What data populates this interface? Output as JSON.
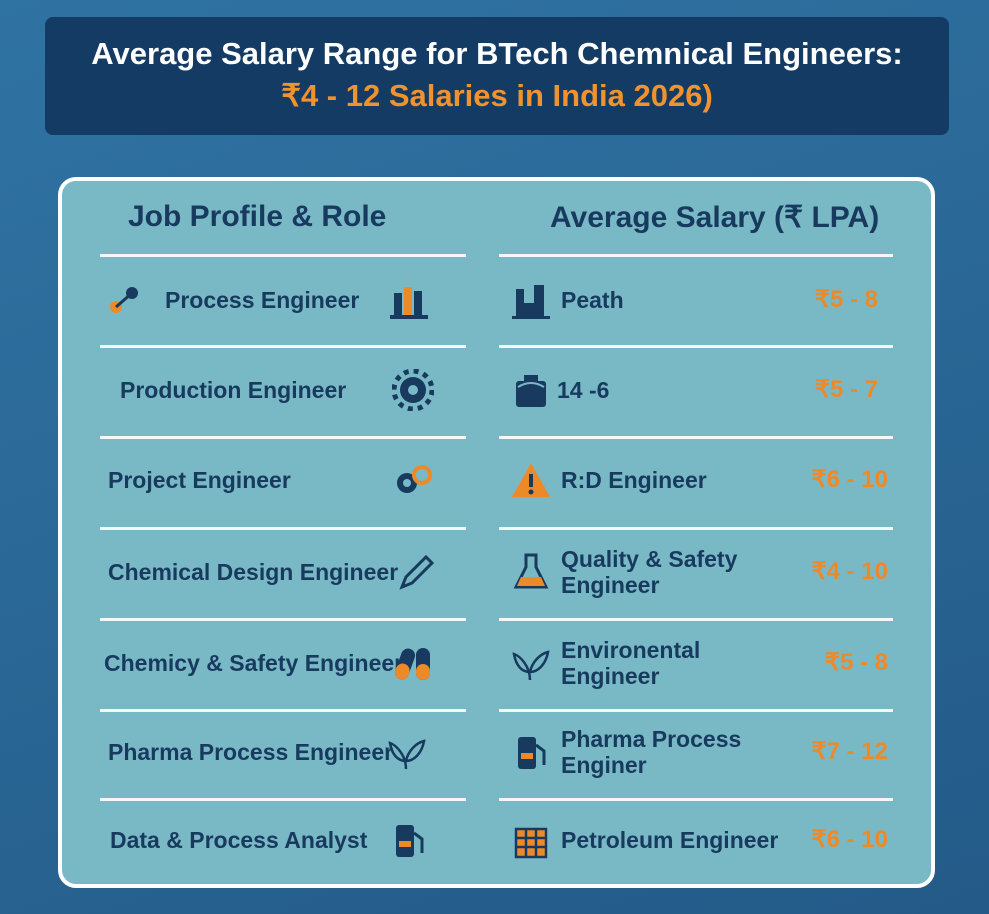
{
  "title": {
    "line1": "Average Salary Range for BTech Chemnical Engineers:",
    "line2": "₹4 - 12 Salaries in India 2026)"
  },
  "headers": {
    "left": "Job Profile & Role",
    "right": "Average Salary (₹ LPA)"
  },
  "left_rows": [
    {
      "label": "Process Engineer",
      "icon": "factory-icon"
    },
    {
      "label": "Production Engineer",
      "icon": "gear-icon"
    },
    {
      "label": "Project Engineer",
      "icon": "gears-icon"
    },
    {
      "label": "Chemical Design Engineer",
      "icon": "pencil-icon"
    },
    {
      "label": "Chemicy & Safety Engineer",
      "icon": "capsule-icon"
    },
    {
      "label": "Pharma Process Engineer",
      "icon": "leaf-icon"
    },
    {
      "label": "Data & Process Analyst",
      "icon": "fuel-pump-icon"
    }
  ],
  "right_rows": [
    {
      "label": "Peath",
      "salary": "₹5 - 8",
      "icon": "plant-icon"
    },
    {
      "label": "14 -6",
      "salary": "₹5 - 7",
      "icon": "briefcase-icon"
    },
    {
      "label": "R:D Engineer",
      "salary": "₹6 - 10",
      "icon": "warning-icon"
    },
    {
      "label": "Quality & Safety Engineer",
      "salary": "₹4 - 10",
      "icon": "flask-icon"
    },
    {
      "label": "Environental Engineer",
      "salary": "₹5 - 8",
      "icon": "leaf-icon"
    },
    {
      "label": "Pharma Process Enginer",
      "salary": "₹7 - 12",
      "icon": "fuel-pump-icon"
    },
    {
      "label": "Petroleum Engineer",
      "salary": "₹6 - 10",
      "icon": "grid-icon"
    }
  ],
  "colors": {
    "navy": "#173a5e",
    "orange": "#ec8a2a",
    "panel": "#79b9c6",
    "title_bg": "#143b64"
  }
}
